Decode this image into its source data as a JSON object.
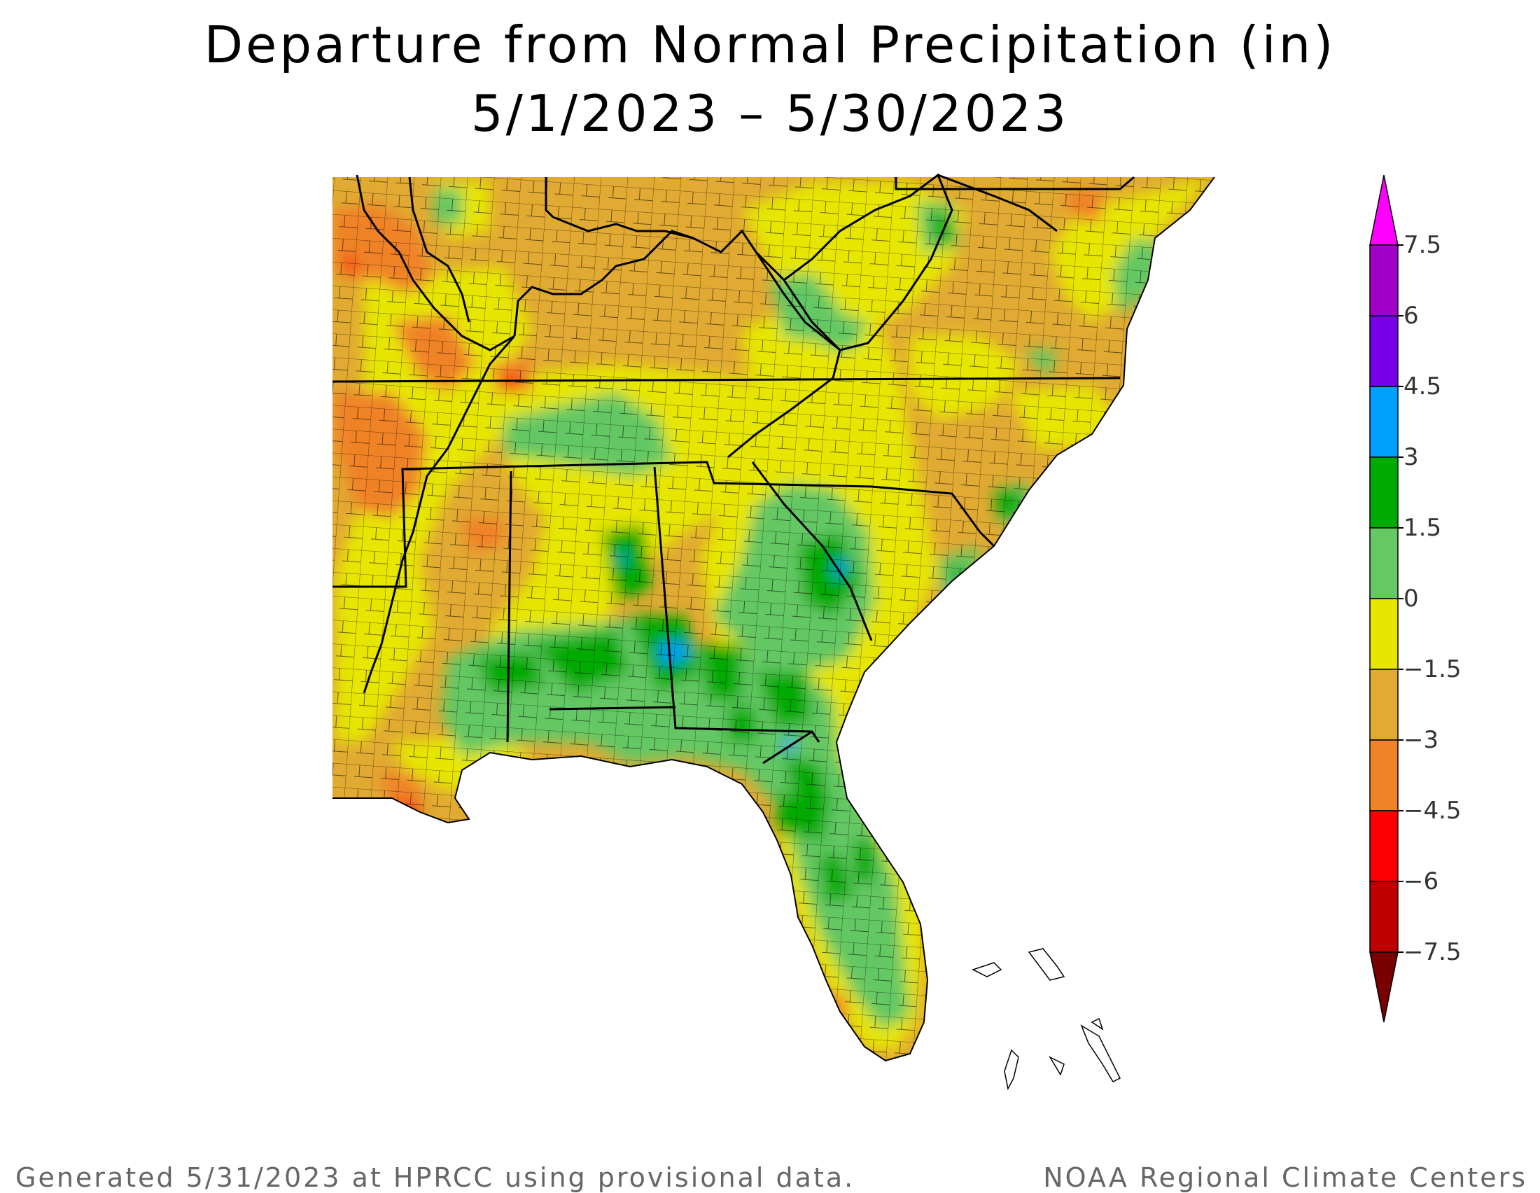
{
  "title": "Departure from Normal Precipitation (in)",
  "subtitle": "5/1/2023 – 5/30/2023",
  "legend": {
    "labels": [
      "7.5",
      "6",
      "4.5",
      "3",
      "1.5",
      "0",
      "−1.5",
      "−3",
      "−4.5",
      "−6",
      "−7.5"
    ],
    "bins": [
      {
        "range": ">7.5",
        "color": "#ff00ff"
      },
      {
        "range": "6 to 7.5",
        "color": "#a000c8"
      },
      {
        "range": "4.5 to 6",
        "color": "#7800e8"
      },
      {
        "range": "3 to 4.5",
        "color": "#00a0ff"
      },
      {
        "range": "1.5 to 3",
        "color": "#00aa00"
      },
      {
        "range": "0 to 1.5",
        "color": "#64c864"
      },
      {
        "range": "-1.5 to 0",
        "color": "#e6e600"
      },
      {
        "range": "-3 to -1.5",
        "color": "#e1aa32"
      },
      {
        "range": "-4.5 to -3",
        "color": "#f08228"
      },
      {
        "range": "-6 to -4.5",
        "color": "#fa0000"
      },
      {
        "range": "-7.5 to -6",
        "color": "#c00000"
      },
      {
        "range": "<-7.5",
        "color": "#780000"
      }
    ]
  },
  "footer": {
    "left": "Generated 5/31/2023 at HPRCC using provisional data.",
    "right": "NOAA Regional Climate Centers"
  }
}
